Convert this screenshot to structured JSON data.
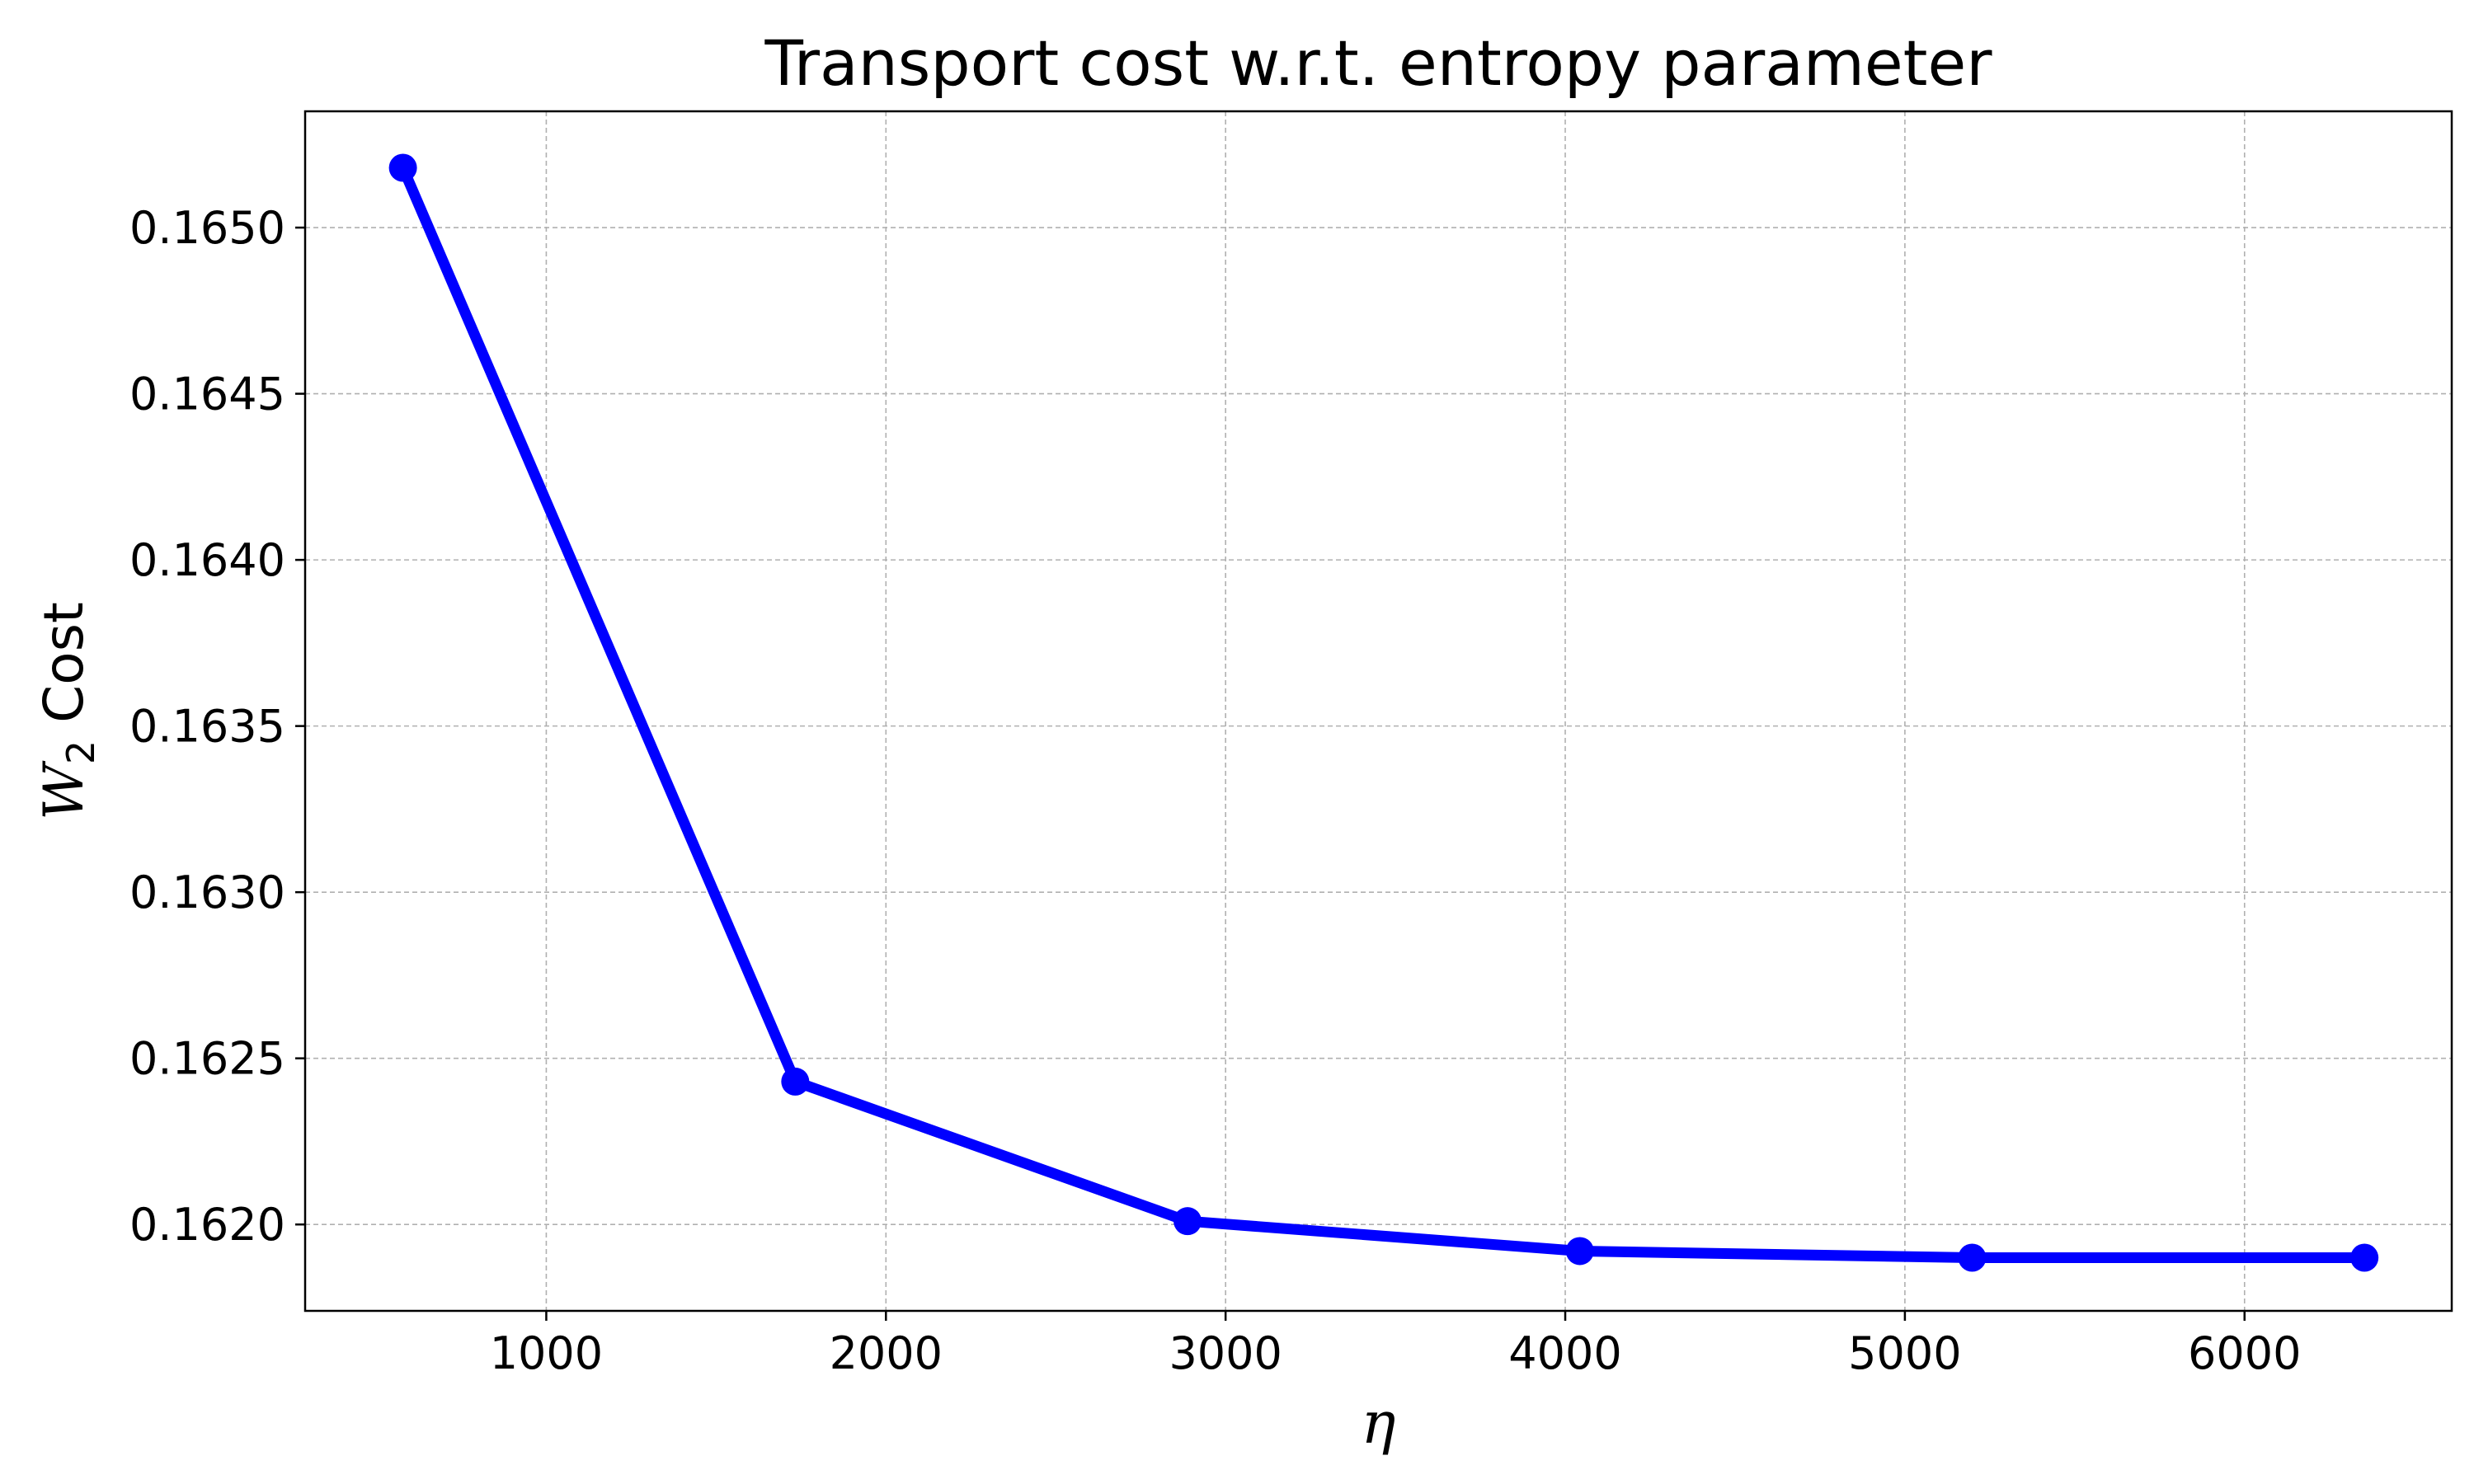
{
  "chart_data": {
    "type": "line",
    "title": "Transport cost w.r.t. entropy parameter",
    "xlabel": "η",
    "ylabel": {
      "symbol": "W",
      "subscript": "2",
      "rest": " Cost"
    },
    "xlim": [
      290,
      6610
    ],
    "ylim": [
      0.16174,
      0.16535
    ],
    "xticks": [
      1000,
      2000,
      3000,
      4000,
      5000,
      6000
    ],
    "xtick_labels": [
      "1000",
      "2000",
      "3000",
      "4000",
      "5000",
      "6000"
    ],
    "yticks": [
      0.162,
      0.1625,
      0.163,
      0.1635,
      0.164,
      0.1645,
      0.165
    ],
    "ytick_labels": [
      "0.1620",
      "0.1625",
      "0.1630",
      "0.1635",
      "0.1640",
      "0.1645",
      "0.1650"
    ],
    "grid": true,
    "series": [
      {
        "color": "#0000ff",
        "marker": "circle",
        "x": [
          578,
          1733,
          2888,
          4043,
          5198,
          6353
        ],
        "y": [
          0.16518,
          0.16243,
          0.16201,
          0.16192,
          0.1619,
          0.1619
        ]
      }
    ]
  }
}
